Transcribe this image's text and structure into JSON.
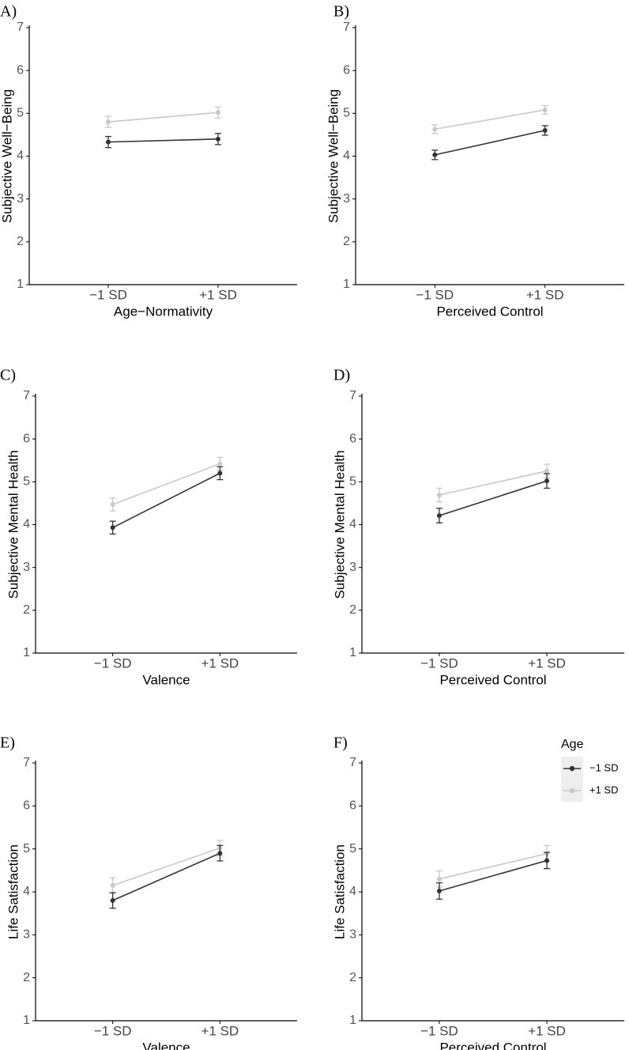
{
  "chart_data": [
    {
      "type": "line",
      "panel": "A)",
      "title": "",
      "xlabel": "Age−Normativity",
      "ylabel": "Subjective Well−Being",
      "categories": [
        "−1 SD",
        "+1 SD"
      ],
      "ylim": [
        1,
        7
      ],
      "yticks": [
        "1",
        "2",
        "3",
        "4",
        "5",
        "6",
        "7"
      ],
      "series": [
        {
          "name": "−1 SD",
          "values": [
            4.33,
            4.4
          ],
          "err": [
            0.13,
            0.13
          ]
        },
        {
          "name": "+1 SD",
          "values": [
            4.8,
            5.02
          ],
          "err": [
            0.13,
            0.13
          ]
        }
      ]
    },
    {
      "type": "line",
      "panel": "B)",
      "title": "",
      "xlabel": "Perceived Control",
      "ylabel": "Subjective Well−Being",
      "categories": [
        "−1 SD",
        "+1 SD"
      ],
      "ylim": [
        1,
        7
      ],
      "yticks": [
        "1",
        "2",
        "3",
        "4",
        "5",
        "6",
        "7"
      ],
      "series": [
        {
          "name": "−1 SD",
          "values": [
            4.03,
            4.6
          ],
          "err": [
            0.11,
            0.11
          ]
        },
        {
          "name": "+1 SD",
          "values": [
            4.63,
            5.08
          ],
          "err": [
            0.1,
            0.1
          ]
        }
      ]
    },
    {
      "type": "line",
      "panel": "C)",
      "title": "",
      "xlabel": "Valence",
      "ylabel": "Subjective Mental Health",
      "categories": [
        "−1 SD",
        "+1 SD"
      ],
      "ylim": [
        1,
        7
      ],
      "yticks": [
        "1",
        "2",
        "3",
        "4",
        "5",
        "6",
        "7"
      ],
      "series": [
        {
          "name": "−1 SD",
          "values": [
            3.93,
            5.2
          ],
          "err": [
            0.15,
            0.15
          ]
        },
        {
          "name": "+1 SD",
          "values": [
            4.47,
            5.42
          ],
          "err": [
            0.15,
            0.15
          ]
        }
      ]
    },
    {
      "type": "line",
      "panel": "D)",
      "title": "",
      "xlabel": "Perceived Control",
      "ylabel": "Subjective Mental Health",
      "categories": [
        "−1 SD",
        "+1 SD"
      ],
      "ylim": [
        1,
        7
      ],
      "yticks": [
        "1",
        "2",
        "3",
        "4",
        "5",
        "6",
        "7"
      ],
      "series": [
        {
          "name": "−1 SD",
          "values": [
            4.21,
            5.02
          ],
          "err": [
            0.17,
            0.17
          ]
        },
        {
          "name": "+1 SD",
          "values": [
            4.69,
            5.25
          ],
          "err": [
            0.16,
            0.16
          ]
        }
      ]
    },
    {
      "type": "line",
      "panel": "E)",
      "title": "",
      "xlabel": "Valence",
      "ylabel": "Life Satisfaction",
      "categories": [
        "−1 SD",
        "+1 SD"
      ],
      "ylim": [
        1,
        7
      ],
      "yticks": [
        "1",
        "2",
        "3",
        "4",
        "5",
        "6",
        "7"
      ],
      "series": [
        {
          "name": "−1 SD",
          "values": [
            3.8,
            4.9
          ],
          "err": [
            0.18,
            0.18
          ]
        },
        {
          "name": "+1 SD",
          "values": [
            4.15,
            5.02
          ],
          "err": [
            0.18,
            0.18
          ]
        }
      ]
    },
    {
      "type": "line",
      "panel": "F)",
      "title": "",
      "xlabel": "Perceived Control",
      "ylabel": "Life Satisfaction",
      "categories": [
        "−1 SD",
        "+1 SD"
      ],
      "ylim": [
        1,
        7
      ],
      "yticks": [
        "1",
        "2",
        "3",
        "4",
        "5",
        "6",
        "7"
      ],
      "series": [
        {
          "name": "−1 SD",
          "values": [
            4.02,
            4.73
          ],
          "err": [
            0.19,
            0.19
          ]
        },
        {
          "name": "+1 SD",
          "values": [
            4.3,
            4.89
          ],
          "err": [
            0.19,
            0.19
          ]
        }
      ]
    }
  ],
  "legend": {
    "title": "Age",
    "entries": [
      {
        "label": "−1 SD",
        "color": "#333333"
      },
      {
        "label": "+1 SD",
        "color": "#c8c8c8"
      }
    ],
    "background": "#eeeeee"
  },
  "colors": {
    "dark": "#333333",
    "light": "#c8c8c8",
    "axis": "#000000"
  }
}
